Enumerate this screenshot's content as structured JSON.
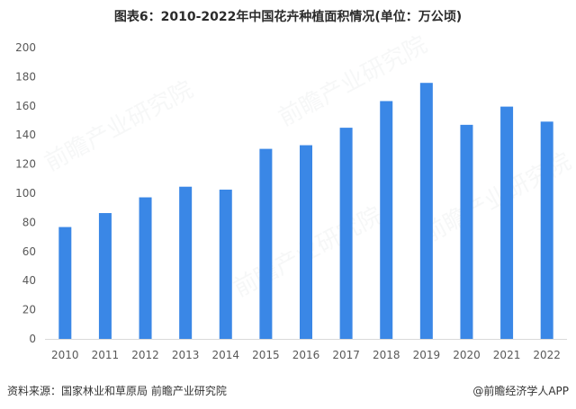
{
  "title": "图表6：2010-2022年中国花卉种植面积情况(单位：万公顷)",
  "source": {
    "left": "资料来源：国家林业和草原局 前瞻产业研究院",
    "right": "@前瞻经济学人APP"
  },
  "watermark": "前瞻产业研究院",
  "colors": {
    "bar": "#3a87e6",
    "axis_text": "#595959",
    "axis_line": "#d9d9d9"
  },
  "chart_data": {
    "type": "bar",
    "title": "图表6：2010-2022年中国花卉种植面积情况(单位：万公顷)",
    "categories": [
      "2010",
      "2011",
      "2012",
      "2013",
      "2014",
      "2015",
      "2016",
      "2017",
      "2018",
      "2019",
      "2020",
      "2021",
      "2022"
    ],
    "values": [
      76.8,
      86.4,
      97.2,
      104.5,
      102.5,
      130.5,
      133.0,
      145.0,
      163.3,
      175.8,
      147.0,
      159.5,
      149.2
    ],
    "ylim": [
      0,
      200
    ],
    "yticks": [
      0,
      20,
      40,
      60,
      80,
      100,
      120,
      140,
      160,
      180,
      200
    ],
    "grid": false,
    "legend": "none"
  }
}
